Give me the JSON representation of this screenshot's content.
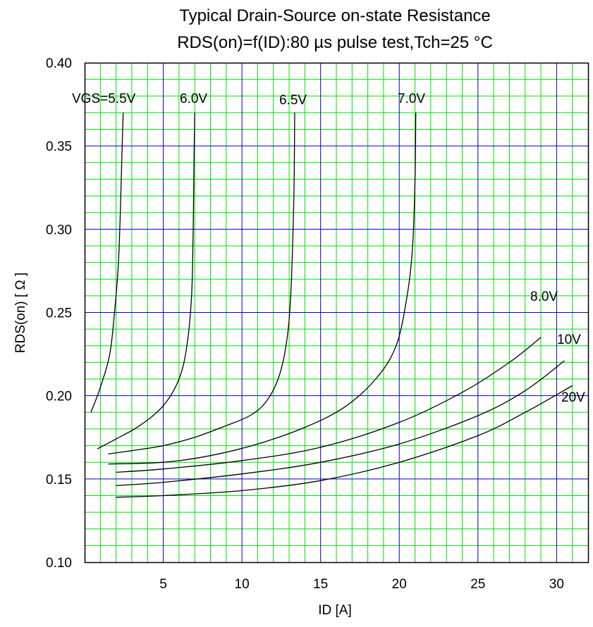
{
  "chart_data": {
    "type": "line",
    "title": "Typical Drain-Source on-state Resistance",
    "subtitle": "RDS(on)=f(ID):80 µs pulse test,Tch=25 °C",
    "xlabel": "ID [A]",
    "ylabel": "RDS(on) [ Ω ]",
    "xlim": [
      0,
      32
    ],
    "ylim": [
      0.1,
      0.4
    ],
    "x_ticks": [
      "5",
      "10",
      "15",
      "20",
      "25",
      "30"
    ],
    "y_ticks": [
      "0.10",
      "0.15",
      "0.20",
      "0.25",
      "0.30",
      "0.35",
      "0.40"
    ],
    "grid": true,
    "colors": {
      "major_grid": "#0000c8",
      "minor_grid": "#00e000",
      "curve": "#000000"
    },
    "series": [
      {
        "name": "VGS=5.5V",
        "x": [
          0.4,
          1.0,
          1.6,
          1.9,
          2.15,
          2.3,
          2.4,
          2.45
        ],
        "y": [
          0.19,
          0.205,
          0.225,
          0.25,
          0.28,
          0.32,
          0.355,
          0.37
        ]
      },
      {
        "name": "6.0V",
        "x": [
          0.8,
          2.0,
          3.5,
          5.0,
          6.0,
          6.5,
          6.8,
          6.9,
          6.95,
          7.0
        ],
        "y": [
          0.168,
          0.174,
          0.182,
          0.194,
          0.21,
          0.23,
          0.26,
          0.3,
          0.34,
          0.37
        ]
      },
      {
        "name": "6.5V",
        "x": [
          1.5,
          3.0,
          5.0,
          7.0,
          9.0,
          10.5,
          11.5,
          12.3,
          12.8,
          13.1,
          13.3,
          13.35
        ],
        "y": [
          0.165,
          0.167,
          0.17,
          0.175,
          0.182,
          0.188,
          0.196,
          0.21,
          0.23,
          0.26,
          0.32,
          0.37
        ]
      },
      {
        "name": "7.0V",
        "x": [
          1.5,
          5.0,
          8.0,
          11.0,
          14.0,
          16.5,
          18.5,
          19.8,
          20.5,
          20.85,
          21.0,
          21.05
        ],
        "y": [
          0.159,
          0.16,
          0.164,
          0.171,
          0.181,
          0.193,
          0.21,
          0.23,
          0.26,
          0.29,
          0.33,
          0.37
        ]
      },
      {
        "name": "8.0V",
        "x": [
          2.0,
          5.0,
          10.0,
          15.0,
          20.0,
          24.0,
          27.0,
          29.0
        ],
        "y": [
          0.154,
          0.156,
          0.161,
          0.169,
          0.184,
          0.202,
          0.22,
          0.235
        ]
      },
      {
        "name": "10V",
        "x": [
          2.0,
          5.0,
          10.0,
          15.0,
          20.0,
          25.0,
          28.0,
          30.5
        ],
        "y": [
          0.146,
          0.148,
          0.153,
          0.16,
          0.171,
          0.188,
          0.203,
          0.221
        ]
      },
      {
        "name": "20V",
        "x": [
          2.0,
          5.0,
          10.0,
          15.0,
          20.0,
          25.0,
          28.0,
          31.0
        ],
        "y": [
          0.139,
          0.14,
          0.143,
          0.149,
          0.16,
          0.176,
          0.19,
          0.206
        ]
      }
    ]
  }
}
